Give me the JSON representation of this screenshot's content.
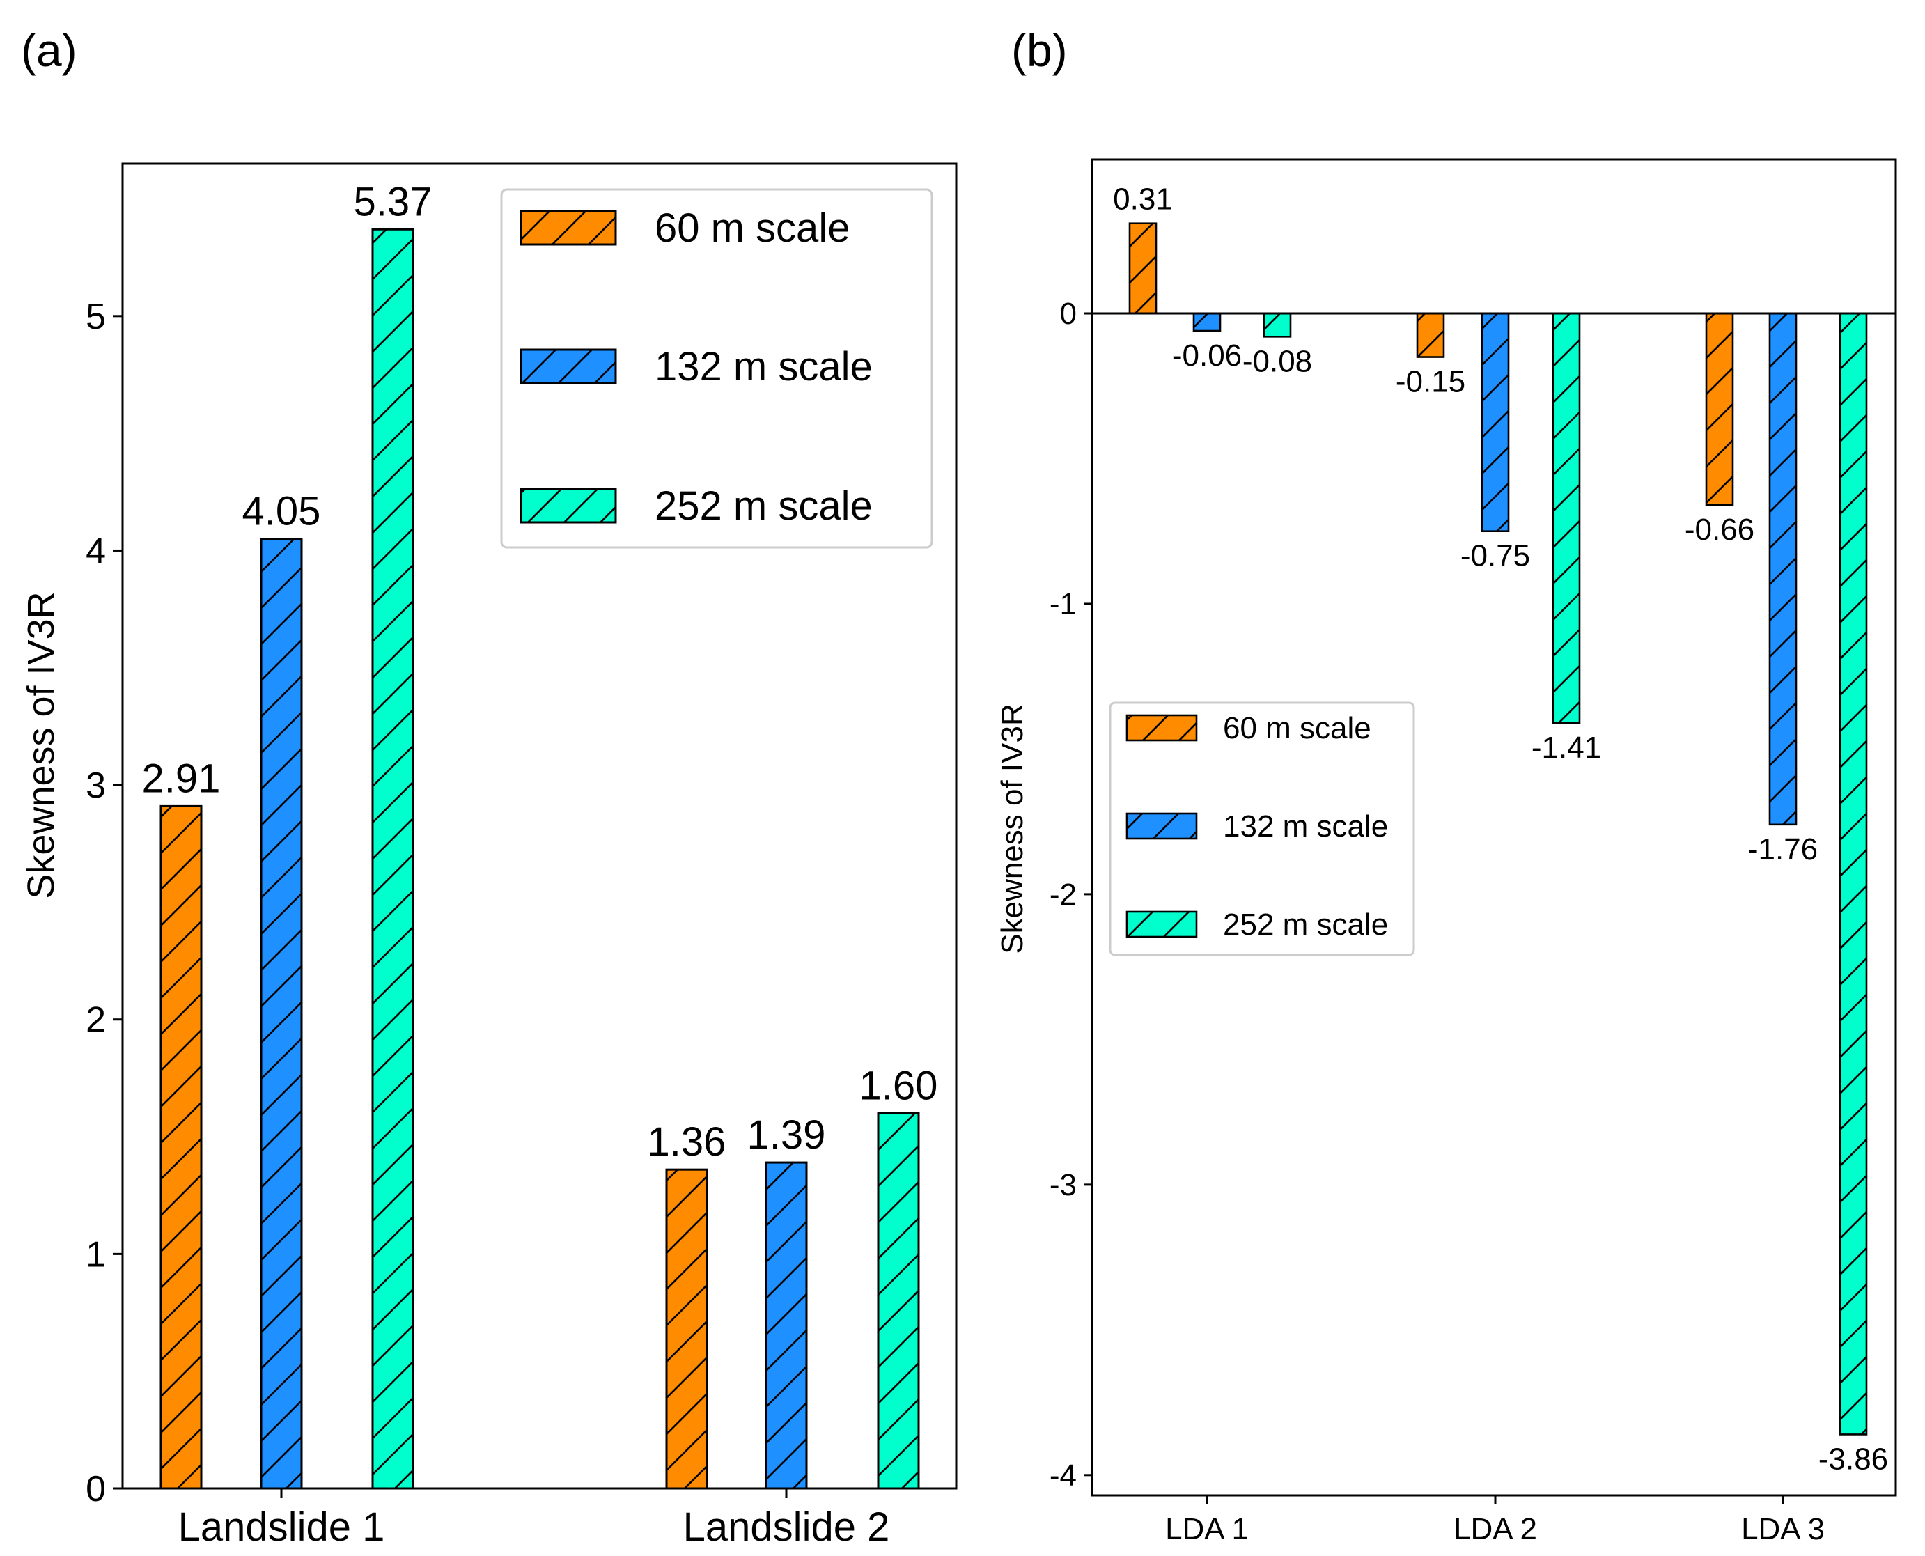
{
  "chart_data": [
    {
      "type": "bar",
      "panel_label": "(a)",
      "ylabel": "Skewness of IV3R",
      "xlabel": "",
      "categories": [
        "Landslide 1",
        "Landslide 2"
      ],
      "series": [
        {
          "name": "60 m scale",
          "values": [
            2.91,
            1.36
          ],
          "labels": [
            "2.91",
            "1.36"
          ],
          "color": "#FF8C00"
        },
        {
          "name": "132 m scale",
          "values": [
            4.05,
            1.39
          ],
          "labels": [
            "4.05",
            "1.39"
          ],
          "color": "#1E90FF"
        },
        {
          "name": "252 m scale",
          "values": [
            5.37,
            1.6
          ],
          "labels": [
            "5.37",
            "1.60"
          ],
          "color": "#00FFCC"
        }
      ],
      "ylim": [
        0,
        5.65
      ],
      "yticks": [
        0,
        1,
        2,
        3,
        4,
        5
      ],
      "ytick_labels": [
        "0",
        "1",
        "2",
        "3",
        "4",
        "5"
      ],
      "legend_position": "top-right",
      "grid": false
    },
    {
      "type": "bar",
      "panel_label": "(b)",
      "ylabel": "Skewness of IV3R",
      "xlabel": "",
      "categories": [
        "LDA 1",
        "LDA 2",
        "LDA 3"
      ],
      "series": [
        {
          "name": "60 m scale",
          "values": [
            0.31,
            -0.15,
            -0.66
          ],
          "labels": [
            "0.31",
            "-0.15",
            "-0.66"
          ],
          "color": "#FF8C00"
        },
        {
          "name": "132 m scale",
          "values": [
            -0.06,
            -0.75,
            -1.76
          ],
          "labels": [
            "-0.06",
            "-0.75",
            "-1.76"
          ],
          "color": "#1E90FF"
        },
        {
          "name": "252 m scale",
          "values": [
            -0.08,
            -1.41,
            -3.86
          ],
          "labels": [
            "-0.08",
            "-1.41",
            "-3.86"
          ],
          "color": "#00FFCC"
        }
      ],
      "ylim": [
        -4.07,
        0.53
      ],
      "yticks": [
        0,
        -1,
        -2,
        -3,
        -4
      ],
      "ytick_labels": [
        "0",
        "-1",
        "-2",
        "-3",
        "-4"
      ],
      "zero_line": true,
      "legend_position": "center-left",
      "grid": false
    }
  ]
}
